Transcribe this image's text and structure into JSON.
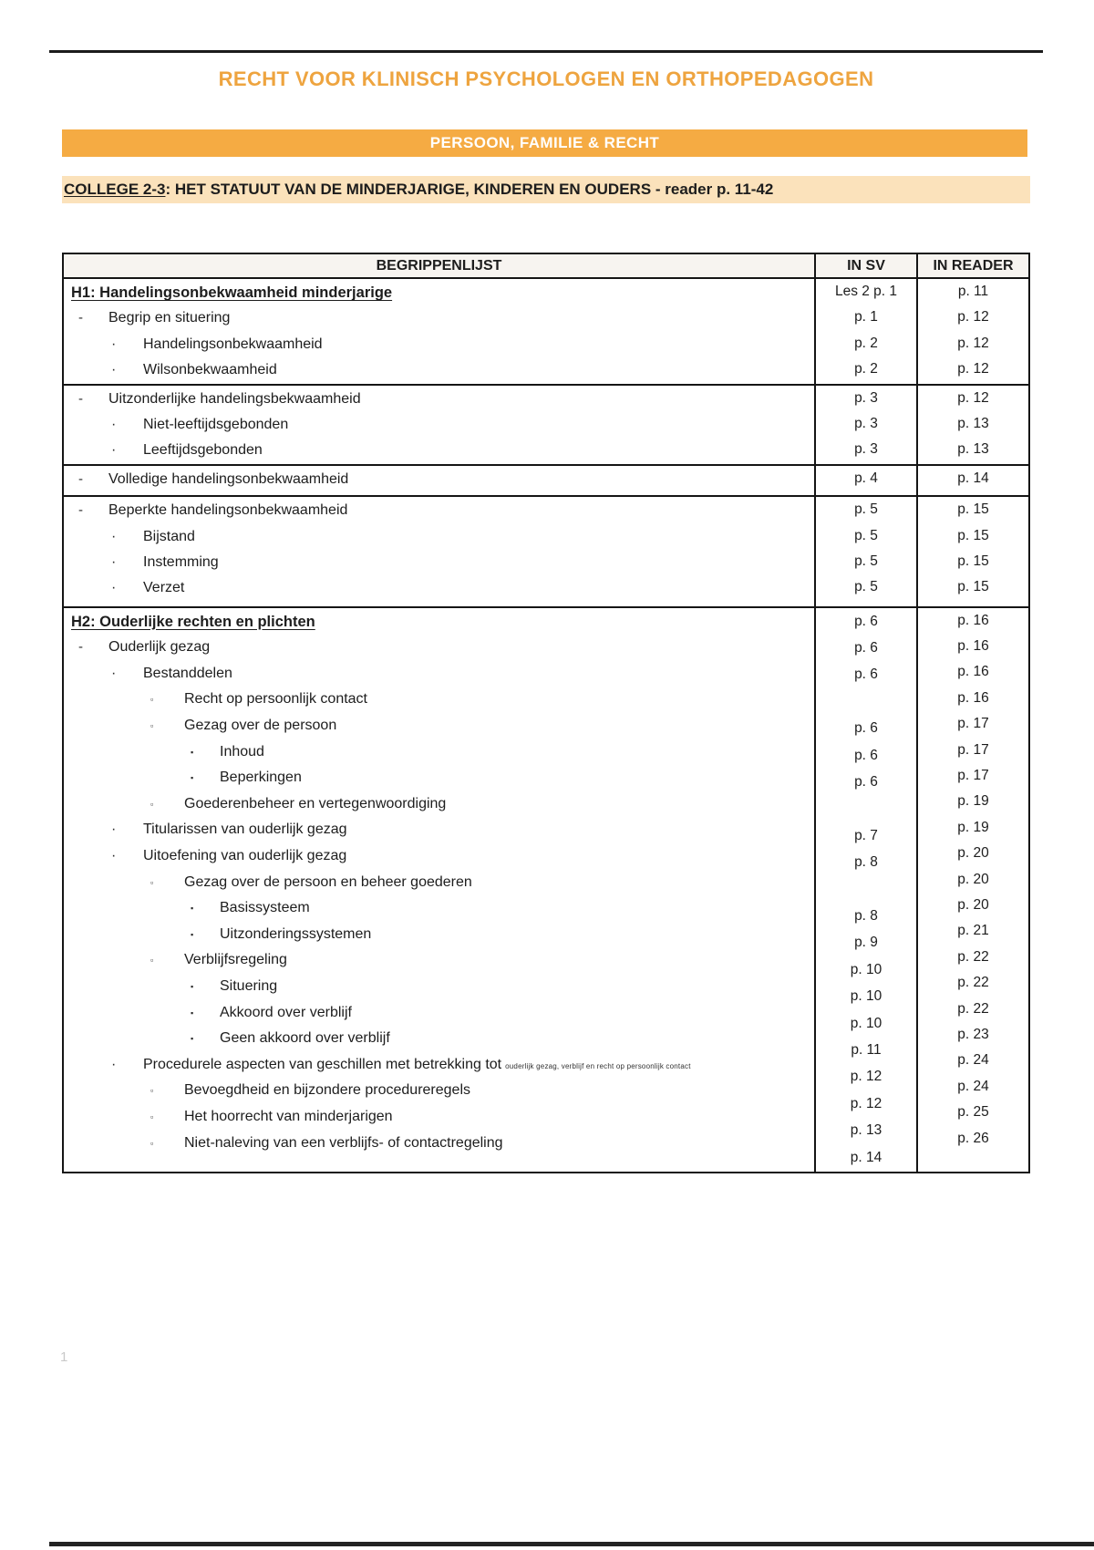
{
  "page": {
    "title": "RECHT VOOR KLINISCH PSYCHOLOGEN EN ORTHOPEDAGOGEN",
    "banner": "PERSOON, FAMILIE & RECHT",
    "college_prefix": "COLLEGE 2-3",
    "college_rest": ": HET STATUUT VAN DE MINDERJARIGE, KINDEREN EN OUDERS - reader p. 11-42",
    "page_number": "1"
  },
  "colors": {
    "title_orange": "#EEA43F",
    "banner_orange": "#F5AB43",
    "highlight_peach": "#FBE2BB",
    "border_black": "#151515"
  },
  "table": {
    "headers": [
      "BEGRIPPENLIJST",
      "IN SV",
      "IN READER"
    ],
    "sections": [
      {
        "rows": [
          {
            "type": "heading",
            "label": "H1: Handelingsonbekwaamheid minderjarige",
            "sv": "Les 2 p. 1",
            "reader": "p. 11"
          },
          {
            "lvl": 1,
            "bullet": "-",
            "label": "Begrip en situering",
            "sv": "p. 1",
            "reader": "p. 12"
          },
          {
            "lvl": 2,
            "bullet": "·",
            "label": "Handelingsonbekwaamheid",
            "sv": "p. 2",
            "reader": "p. 12"
          },
          {
            "lvl": 2,
            "bullet": "·",
            "label": "Wilsonbekwaamheid",
            "sv": "p. 2",
            "reader": "p. 12"
          }
        ]
      },
      {
        "rows": [
          {
            "lvl": 1,
            "bullet": "-",
            "label": "Uitzonderlijke handelingsbekwaamheid",
            "sv": "p. 3",
            "reader": "p. 12"
          },
          {
            "lvl": 2,
            "bullet": "·",
            "label": "Niet-leeftijdsgebonden",
            "sv": "p. 3",
            "reader": "p. 13"
          },
          {
            "lvl": 2,
            "bullet": "·",
            "label": "Leeftijdsgebonden",
            "sv": "p. 3",
            "reader": "p. 13"
          }
        ]
      },
      {
        "extra_class": "pb3",
        "rows": [
          {
            "lvl": 1,
            "bullet": "-",
            "label": "Volledige handelingsonbekwaamheid",
            "sv": "p. 4",
            "reader": "p. 14"
          }
        ]
      },
      {
        "extra_class": "pb5",
        "rows": [
          {
            "lvl": 1,
            "bullet": "-",
            "label": "Beperkte handelingsonbekwaamheid",
            "sv": "p. 5",
            "reader": "p. 15"
          },
          {
            "lvl": 2,
            "bullet": "·",
            "label": "Bijstand",
            "sv": "p. 5",
            "reader": "p. 15"
          },
          {
            "lvl": 2,
            "bullet": "·",
            "label": "Instemming",
            "sv": "p. 5",
            "reader": "p. 15"
          },
          {
            "lvl": 2,
            "bullet": "·",
            "label": "Verzet",
            "sv": "p. 5",
            "reader": "p. 15"
          }
        ]
      },
      {
        "extra_class": "sec5",
        "sv_stack": [
          "p. 6",
          "p. 6",
          "p. 6",
          "",
          "p. 6",
          "p. 6",
          "p. 6",
          "",
          "p. 7",
          "p. 8",
          "",
          "p. 8",
          "p. 9",
          "p. 10",
          "p. 10",
          "p. 10",
          "p. 11",
          "p. 12",
          "p. 12",
          "p. 13",
          "p. 14"
        ],
        "rows": [
          {
            "type": "heading",
            "label": "H2: Ouderlijke rechten en plichten",
            "reader": "p. 16"
          },
          {
            "lvl": 1,
            "bullet": "-",
            "label": "Ouderlijk gezag",
            "reader": "p. 16"
          },
          {
            "lvl": 2,
            "bullet": "·",
            "label": "Bestanddelen",
            "reader": "p. 16"
          },
          {
            "lvl": 3,
            "bullet": "▫",
            "label": "Recht op persoonlijk contact",
            "reader": "p. 16"
          },
          {
            "lvl": 3,
            "bullet": "▫",
            "label": "Gezag over de persoon",
            "reader": "p. 17"
          },
          {
            "lvl": 4,
            "bullet": "▪",
            "label": "Inhoud",
            "reader": "p. 17"
          },
          {
            "lvl": 4,
            "bullet": "▪",
            "label": "Beperkingen",
            "reader": "p. 17"
          },
          {
            "lvl": 3,
            "bullet": "▫",
            "label": "Goederenbeheer en vertegenwoordiging",
            "reader": "p. 19"
          },
          {
            "lvl": 2,
            "bullet": "·",
            "label": "Titularissen van ouderlijk gezag",
            "reader": "p. 19"
          },
          {
            "lvl": 2,
            "bullet": "·",
            "label": "Uitoefening van ouderlijk gezag",
            "reader": "p. 20"
          },
          {
            "lvl": 3,
            "bullet": "▫",
            "label": "Gezag over de persoon en beheer goederen",
            "reader": "p. 20"
          },
          {
            "lvl": 4,
            "bullet": "▪",
            "label": "Basissysteem",
            "reader": "p. 20"
          },
          {
            "lvl": 4,
            "bullet": "▪",
            "label": "Uitzonderingssystemen",
            "reader": "p. 21"
          },
          {
            "lvl": 3,
            "bullet": "▫",
            "label": "Verblijfsregeling",
            "reader": "p. 22"
          },
          {
            "lvl": 4,
            "bullet": "▪",
            "label": "Situering",
            "reader": "p. 22"
          },
          {
            "lvl": 4,
            "bullet": "▪",
            "label": "Akkoord over verblijf",
            "reader": "p. 22"
          },
          {
            "lvl": 4,
            "bullet": "▪",
            "label": "Geen akkoord over verblijf",
            "reader": "p. 23"
          },
          {
            "lvl": 2,
            "bullet": "·",
            "label": "Procedurele aspecten van geschillen met betrekking tot",
            "label_small": "ouderlijk gezag, verblijf en recht op persoonlijk contact",
            "reader": "p. 24"
          },
          {
            "lvl": 3,
            "bullet": "▫",
            "label": "Bevoegdheid en bijzondere procedureregels",
            "reader": "p. 24"
          },
          {
            "lvl": 3,
            "bullet": "▫",
            "label": "Het hoorrecht van minderjarigen",
            "reader": "p. 25"
          },
          {
            "lvl": 3,
            "bullet": "▫",
            "label": "Niet-naleving van een verblijfs- of contactregeling",
            "reader": "p. 26"
          }
        ]
      }
    ]
  }
}
